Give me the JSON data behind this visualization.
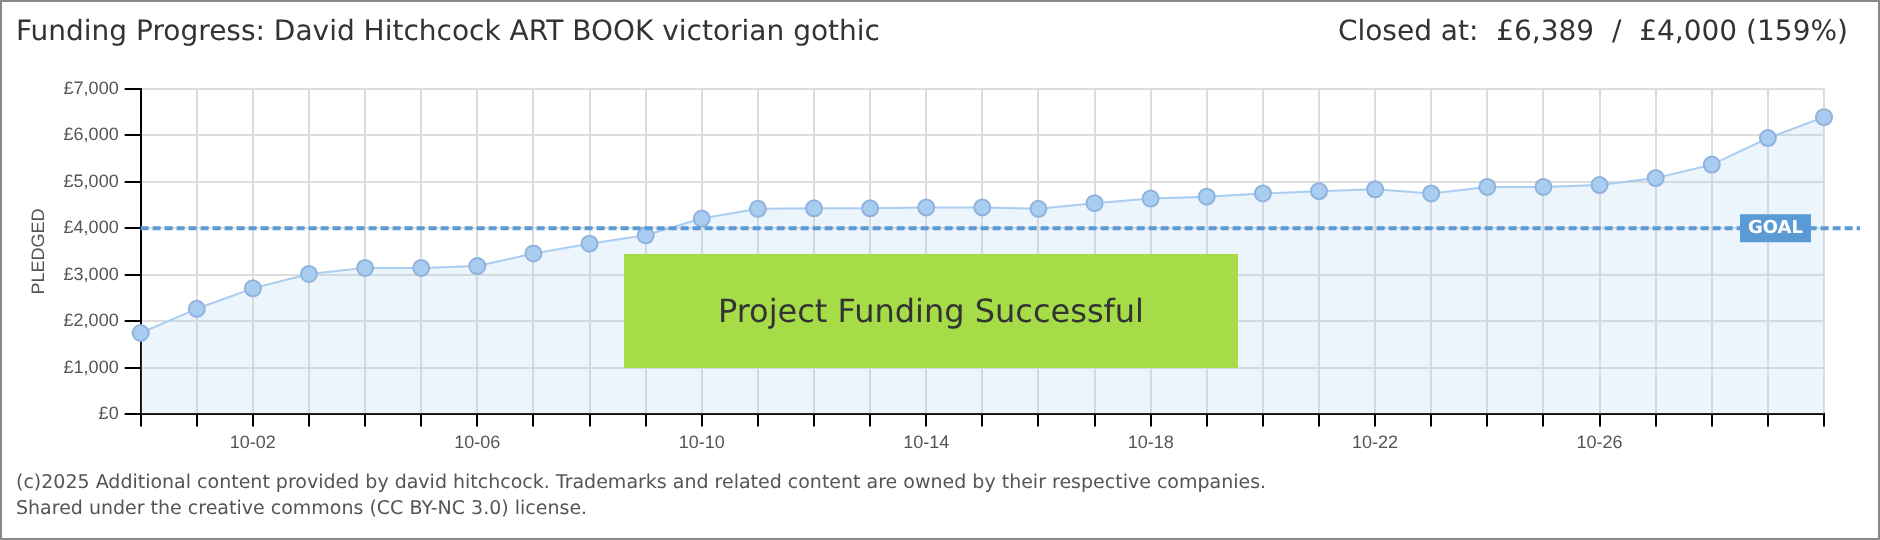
{
  "chart_data": {
    "type": "area",
    "title": "Funding Progress: David Hitchcock ART BOOK victorian gothic",
    "subtitle": "Closed at:  £6,389  /  £4,000 (159%)",
    "ylabel": "PLEDGED",
    "categories": [
      null,
      null,
      "10-02",
      null,
      null,
      null,
      "10-06",
      null,
      null,
      null,
      "10-10",
      null,
      null,
      null,
      "10-14",
      null,
      null,
      null,
      "10-18",
      null,
      null,
      null,
      "10-22",
      null,
      null,
      null,
      "10-26",
      null,
      null,
      null,
      null
    ],
    "series": [
      {
        "color": "#a9cdf1",
        "values": [
          1750,
          2270,
          2710,
          3020,
          3150,
          3150,
          3190,
          3460,
          3670,
          3850,
          4210,
          4420,
          4430,
          4430,
          4450,
          4450,
          4420,
          4540,
          4640,
          4680,
          4750,
          4800,
          4840,
          4750,
          4890,
          4890,
          4930,
          5080,
          5370,
          5940,
          6390
        ]
      }
    ],
    "ylim": [
      0,
      7000
    ],
    "yticks": [
      {
        "value": 0,
        "label": "£0"
      },
      {
        "value": 1000,
        "label": "£1,000"
      },
      {
        "value": 2000,
        "label": "£2,000"
      },
      {
        "value": 3000,
        "label": "£3,000"
      },
      {
        "value": 4000,
        "label": "£4,000"
      },
      {
        "value": 5000,
        "label": "£5,000"
      },
      {
        "value": 6000,
        "label": "£6,000"
      },
      {
        "value": 7000,
        "label": "£7,000"
      }
    ],
    "grid": true,
    "marker": "circle",
    "legend": false,
    "ref_lines": [
      {
        "axis": "y",
        "value": 4000,
        "label": "GOAL",
        "color": "#5b9bd5",
        "line_style": "dashed"
      }
    ],
    "annotations": [
      "Project Funding Successful",
      "(c)2025 Additional content provided by david hitchcock. Trademarks and related content are owned by their respective companies.",
      "Shared under the creative commons (CC BY-NC 3.0) license."
    ]
  }
}
